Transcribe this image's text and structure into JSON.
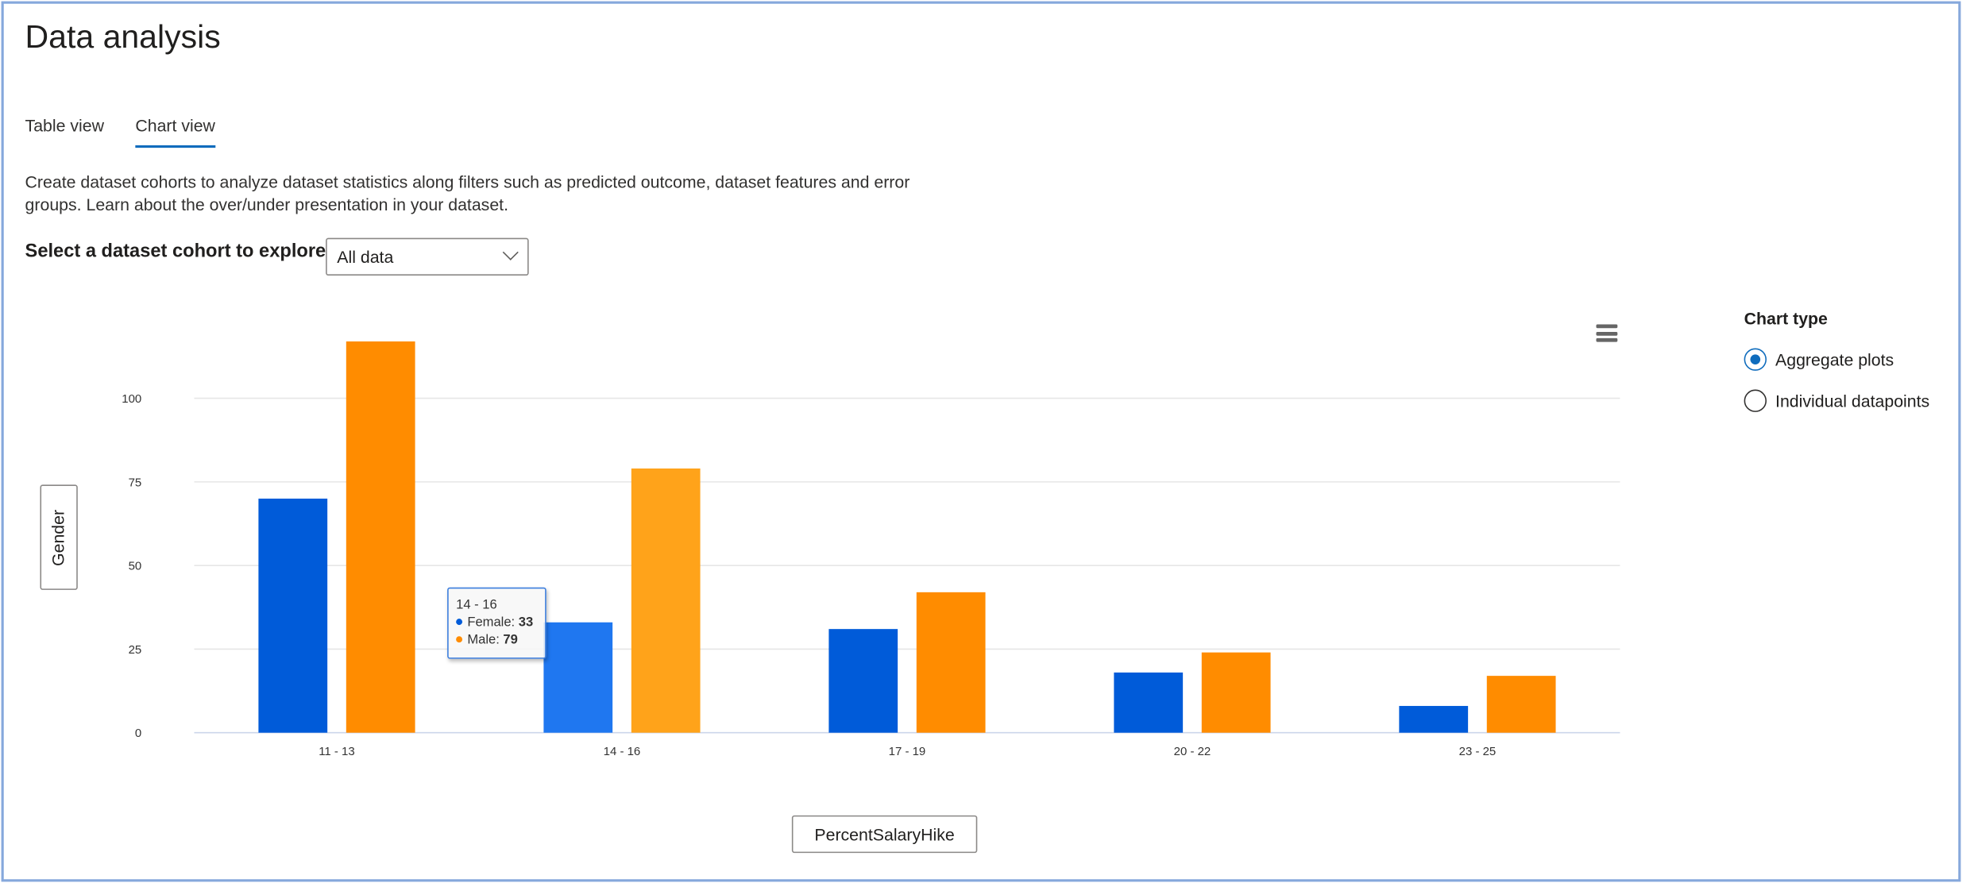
{
  "header": {
    "title": "Data analysis"
  },
  "tabs": [
    {
      "label": "Table view",
      "active": false
    },
    {
      "label": "Chart view",
      "active": true
    }
  ],
  "description": "Create dataset cohorts to analyze dataset statistics along filters such as predicted outcome, dataset features and error groups. Learn about the over/under presentation in your dataset.",
  "cohort": {
    "label": "Select a dataset cohort to explore",
    "value": "All data"
  },
  "axis_buttons": {
    "y": "Gender",
    "x": "PercentSalaryHike"
  },
  "chart_type": {
    "title": "Chart type",
    "options": [
      {
        "label": "Aggregate plots",
        "selected": true
      },
      {
        "label": "Individual datapoints",
        "selected": false
      }
    ]
  },
  "tooltip": {
    "category": "14 - 16",
    "rows": [
      {
        "label": "Female: ",
        "value": "33"
      },
      {
        "label": "Male: ",
        "value": "79"
      }
    ]
  },
  "chart_data": {
    "type": "bar",
    "categories": [
      "11 - 13",
      "14 - 16",
      "17 - 19",
      "20 - 22",
      "23 - 25"
    ],
    "series": [
      {
        "name": "Female",
        "values": [
          70,
          33,
          31,
          18,
          8
        ],
        "color": "#005BD9",
        "hover_color": "#1F77F0"
      },
      {
        "name": "Male",
        "values": [
          117,
          79,
          42,
          24,
          17
        ],
        "color": "#FF8C00",
        "hover_color": "#FFA31A"
      }
    ],
    "highlighted_category": "14 - 16",
    "xlabel": "PercentSalaryHike",
    "ylabel": "Gender",
    "yticks": [
      0,
      25,
      50,
      75,
      100
    ],
    "ylim": [
      0,
      120
    ],
    "grid": true,
    "legend": "none"
  }
}
